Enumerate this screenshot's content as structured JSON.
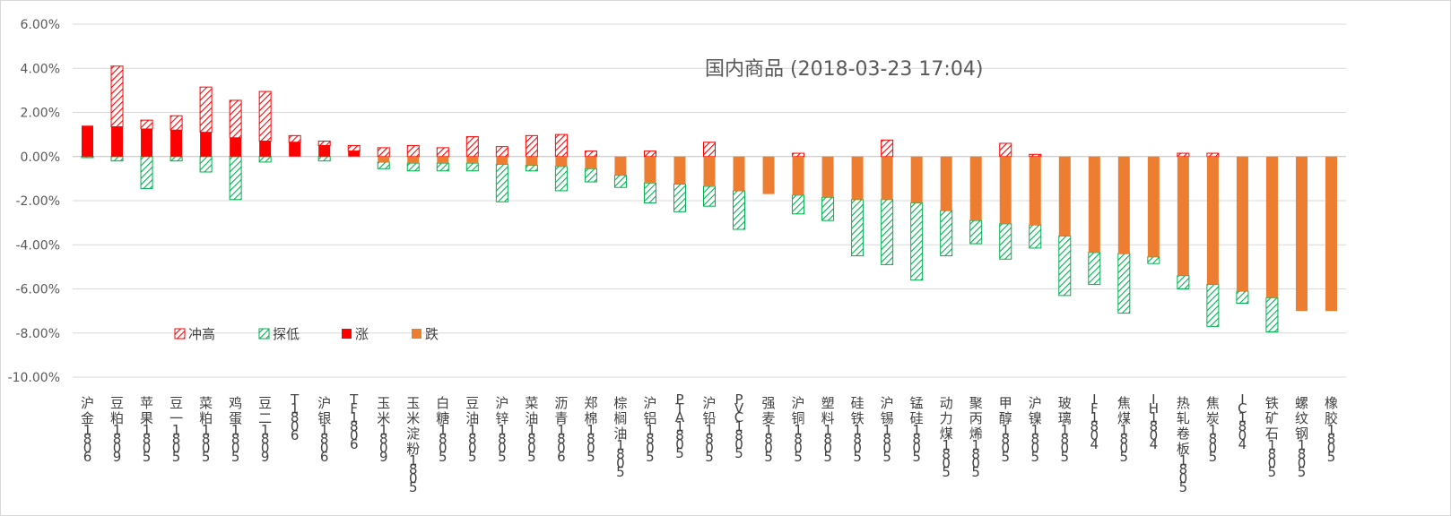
{
  "chart_data": {
    "type": "bar",
    "title": "国内商品 (2018-03-23 17:04)",
    "xlabel": "",
    "ylabel": "",
    "ylim": [
      -10,
      6
    ],
    "yticks": [
      "6.00%",
      "4.00%",
      "2.00%",
      "0.00%",
      "-2.00%",
      "-4.00%",
      "-6.00%",
      "-8.00%",
      "-10.00%"
    ],
    "ytick_values": [
      6,
      4,
      2,
      0,
      -2,
      -4,
      -6,
      -8,
      -10
    ],
    "grid": true,
    "legend_placement": "lower-left",
    "categories": [
      "沪金1806",
      "豆粕1809",
      "苹果1805",
      "豆一1805",
      "菜粕1805",
      "鸡蛋1805",
      "豆二1809",
      "T1806",
      "沪银1806",
      "TF1806",
      "玉米1809",
      "玉米淀粉1805",
      "白糖1805",
      "豆油1805",
      "沪锌1805",
      "菜油1805",
      "沥青1806",
      "郑棉1805",
      "棕榈油1805",
      "沪铝1805",
      "PTA1805",
      "沪铅1805",
      "PVC1805",
      "强麦1805",
      "沪铜1805",
      "塑料1805",
      "硅铁1805",
      "沪锡1805",
      "锰硅1805",
      "动力煤1805",
      "聚丙烯1805",
      "甲醇1805",
      "沪镍1805",
      "玻璃1805",
      "IF1804",
      "焦煤1805",
      "IH1804",
      "热轧卷板1805",
      "焦炭1805",
      "IC1804",
      "铁矿石1805",
      "螺纹钢1805",
      "橡胶1805"
    ],
    "series": [
      {
        "name": "冲高",
        "color": "#ff0000",
        "pattern": "hatch",
        "values": [
          1.4,
          4.1,
          1.65,
          1.85,
          3.15,
          2.55,
          2.95,
          0.95,
          0.7,
          0.5,
          0.4,
          0.5,
          0.4,
          0.9,
          0.45,
          0.95,
          1.0,
          0.25,
          0.0,
          0.25,
          0.0,
          0.65,
          0.0,
          0.0,
          0.15,
          0.0,
          0.0,
          0.75,
          0.0,
          0.0,
          0.0,
          0.6,
          0.1,
          0.0,
          0.0,
          0.0,
          0.0,
          0.15,
          0.15,
          0.0,
          0.0,
          0.0,
          0.0
        ]
      },
      {
        "name": "探低",
        "color": "#00b050",
        "pattern": "hatch",
        "values": [
          -0.05,
          -0.2,
          -1.45,
          -0.2,
          -0.7,
          -1.95,
          -0.25,
          0.0,
          -0.2,
          0.0,
          -0.55,
          -0.65,
          -0.65,
          -0.65,
          -2.05,
          -0.65,
          -1.55,
          -1.15,
          -1.4,
          -2.1,
          -2.5,
          -2.25,
          -3.3,
          -1.7,
          -2.6,
          -2.9,
          -4.5,
          -4.9,
          -5.6,
          -4.5,
          -3.95,
          -4.65,
          -4.15,
          -6.3,
          -5.8,
          -7.1,
          -4.85,
          -6.0,
          -7.7,
          -6.65,
          -7.95,
          -7.0,
          -7.0
        ]
      },
      {
        "name": "涨",
        "color": "#ff0000",
        "pattern": "solid",
        "values": [
          1.4,
          1.35,
          1.25,
          1.2,
          1.1,
          0.85,
          0.7,
          0.65,
          0.5,
          0.25,
          0.0,
          0.0,
          0.0,
          0.0,
          0.0,
          0.0,
          0.0,
          0.0,
          0.0,
          0.0,
          0.0,
          0.0,
          0.0,
          0.0,
          0.0,
          0.0,
          0.0,
          0.0,
          0.0,
          0.0,
          0.0,
          0.0,
          0.0,
          0.0,
          0.0,
          0.0,
          0.0,
          0.0,
          0.0,
          0.0,
          0.0,
          0.0,
          0.0
        ]
      },
      {
        "name": "跌",
        "color": "#ed7d31",
        "pattern": "solid",
        "values": [
          0.0,
          0.0,
          0.0,
          0.0,
          0.0,
          0.0,
          0.0,
          0.0,
          0.0,
          0.0,
          -0.25,
          -0.3,
          -0.3,
          -0.3,
          -0.35,
          -0.4,
          -0.45,
          -0.55,
          -0.85,
          -1.2,
          -1.25,
          -1.35,
          -1.55,
          -1.7,
          -1.75,
          -1.85,
          -1.95,
          -1.95,
          -2.1,
          -2.45,
          -2.9,
          -3.05,
          -3.1,
          -3.6,
          -4.35,
          -4.4,
          -4.55,
          -5.4,
          -5.8,
          -6.1,
          -6.4,
          -7.0,
          -7.0
        ]
      }
    ]
  }
}
